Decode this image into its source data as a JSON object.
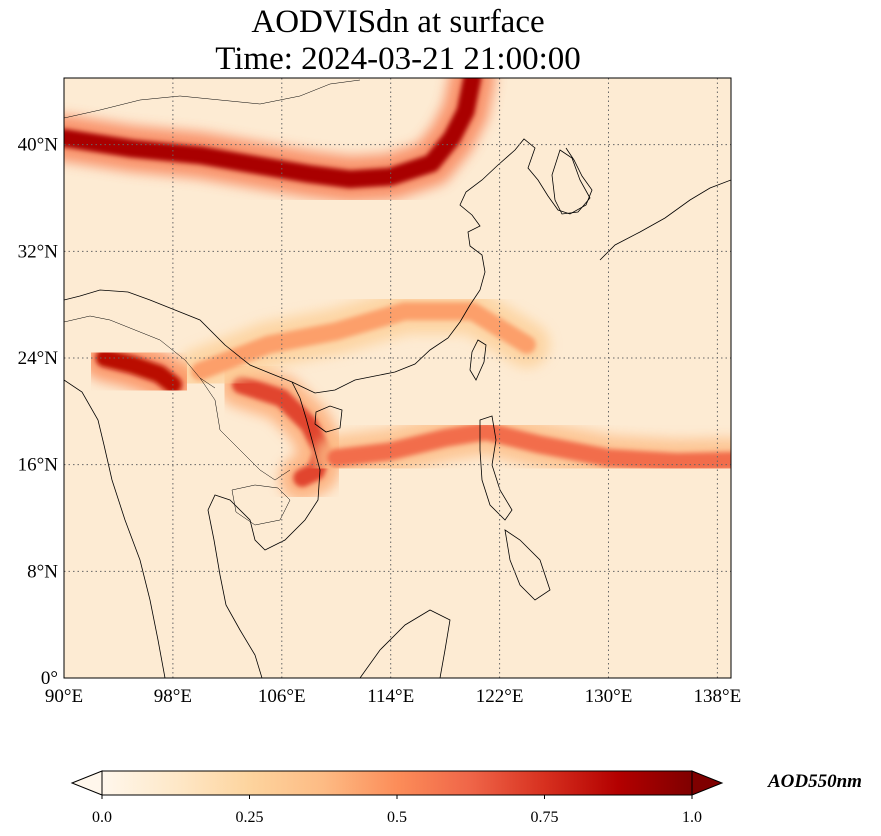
{
  "title": {
    "line1": "AODVISdn at surface",
    "line2": "Time: 2024-03-21 21:00:00"
  },
  "map": {
    "projection": "PlateCarree",
    "lon_range": [
      90,
      139
    ],
    "lat_range": [
      0,
      45
    ],
    "gridlines": "dotted",
    "coastlines": true,
    "borders": true
  },
  "axes": {
    "x_ticks": [
      {
        "value": 90,
        "label": "90°E"
      },
      {
        "value": 98,
        "label": "98°E"
      },
      {
        "value": 106,
        "label": "106°E"
      },
      {
        "value": 114,
        "label": "114°E"
      },
      {
        "value": 122,
        "label": "122°E"
      },
      {
        "value": 130,
        "label": "130°E"
      },
      {
        "value": 138,
        "label": "138°E"
      }
    ],
    "y_ticks": [
      {
        "value": 0,
        "label": "0°"
      },
      {
        "value": 8,
        "label": "8°N"
      },
      {
        "value": 16,
        "label": "16°N"
      },
      {
        "value": 24,
        "label": "24°N"
      },
      {
        "value": 32,
        "label": "32°N"
      },
      {
        "value": 40,
        "label": "40°N"
      }
    ]
  },
  "colorbar": {
    "label": "AOD550nm",
    "colormap": "OrRd",
    "range": [
      0.0,
      1.0
    ],
    "extend": "both",
    "colors": [
      "#fff7ec",
      "#fee8c8",
      "#fdd49e",
      "#fdbb84",
      "#fc8d59",
      "#ef6548",
      "#d7301f",
      "#b30000",
      "#7f0000"
    ],
    "ticks": [
      {
        "value": 0.0,
        "label": "0.0"
      },
      {
        "value": 0.25,
        "label": "0.25"
      },
      {
        "value": 0.5,
        "label": "0.5"
      },
      {
        "value": 0.75,
        "label": "0.75"
      },
      {
        "value": 1.0,
        "label": "1.0"
      }
    ]
  },
  "field_features": [
    {
      "name": "northern-dust-band",
      "aod": 0.9,
      "points": [
        [
          90,
          40.5
        ],
        [
          95,
          39.7
        ],
        [
          100,
          39.2
        ],
        [
          104,
          38.5
        ],
        [
          108,
          37.8
        ],
        [
          111,
          37.4
        ],
        [
          114,
          37.6
        ],
        [
          117,
          38.6
        ],
        [
          118.5,
          40.5
        ],
        [
          119.5,
          42.5
        ],
        [
          120,
          45
        ]
      ]
    },
    {
      "name": "indochina-plume",
      "aod": 0.7,
      "points": [
        [
          103,
          22
        ],
        [
          106,
          21
        ],
        [
          108,
          19
        ],
        [
          109,
          17
        ],
        [
          108.5,
          15.5
        ],
        [
          107.5,
          15
        ]
      ]
    },
    {
      "name": "south-china-sea-band",
      "aod": 0.6,
      "points": [
        [
          110,
          16.5
        ],
        [
          114,
          17
        ],
        [
          118,
          18
        ],
        [
          121,
          18.5
        ],
        [
          125,
          17.5
        ],
        [
          130,
          16.5
        ],
        [
          135,
          16.2
        ],
        [
          139,
          16.3
        ]
      ]
    },
    {
      "name": "central-china-band",
      "aod": 0.45,
      "points": [
        [
          100,
          23
        ],
        [
          105,
          25
        ],
        [
          110,
          26
        ],
        [
          115,
          27.5
        ],
        [
          120,
          27.5
        ],
        [
          124,
          25
        ]
      ]
    },
    {
      "name": "myanmar-hotspot",
      "aod": 0.85,
      "points": [
        [
          93,
          24
        ],
        [
          95,
          23.5
        ],
        [
          97,
          22.8
        ],
        [
          98,
          22
        ]
      ]
    }
  ]
}
